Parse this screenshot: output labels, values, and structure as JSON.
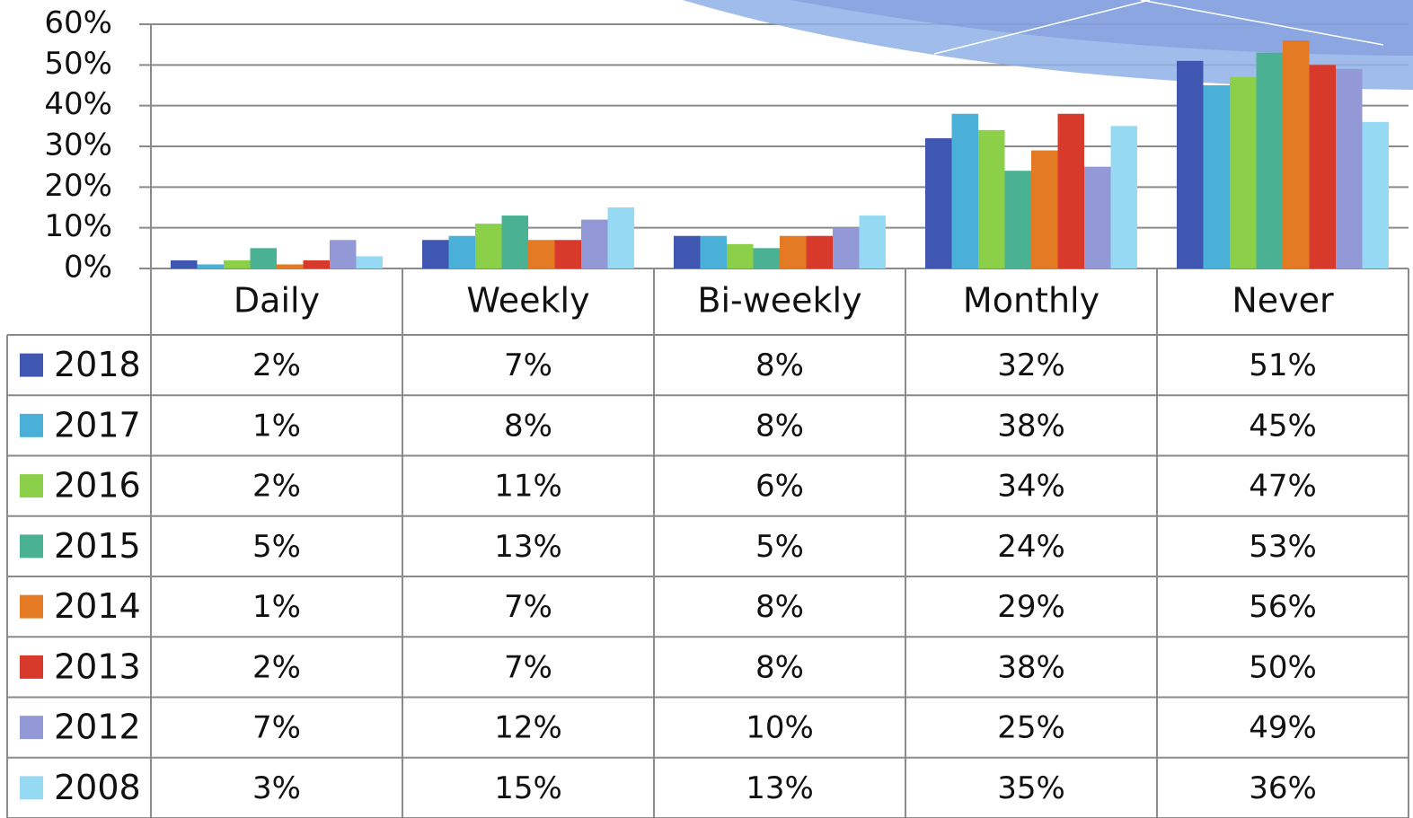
{
  "chart_data": {
    "type": "bar",
    "categories": [
      "Daily",
      "Weekly",
      "Bi-weekly",
      "Monthly",
      "Never"
    ],
    "ylim": [
      0,
      60
    ],
    "yticks": [
      {
        "value": 0,
        "label": "0%"
      },
      {
        "value": 10,
        "label": "10%"
      },
      {
        "value": 20,
        "label": "20%"
      },
      {
        "value": 30,
        "label": "30%"
      },
      {
        "value": 40,
        "label": "40%"
      },
      {
        "value": 50,
        "label": "50%"
      },
      {
        "value": 60,
        "label": "60%"
      }
    ],
    "grid": true,
    "series": [
      {
        "name": "2018",
        "color": "#3f57b0",
        "values": [
          2,
          7,
          8,
          32,
          51
        ],
        "value_labels": [
          "2%",
          "7%",
          "8%",
          "32%",
          "51%"
        ]
      },
      {
        "name": "2017",
        "color": "#4ab0d8",
        "values": [
          1,
          8,
          8,
          38,
          45
        ],
        "value_labels": [
          "1%",
          "8%",
          "8%",
          "38%",
          "45%"
        ]
      },
      {
        "name": "2016",
        "color": "#8ccf48",
        "values": [
          2,
          11,
          6,
          34,
          47
        ],
        "value_labels": [
          "2%",
          "11%",
          "6%",
          "34%",
          "47%"
        ]
      },
      {
        "name": "2015",
        "color": "#4bb193",
        "values": [
          5,
          13,
          5,
          24,
          53
        ],
        "value_labels": [
          "5%",
          "13%",
          "5%",
          "24%",
          "53%"
        ]
      },
      {
        "name": "2014",
        "color": "#e47a24",
        "values": [
          1,
          7,
          8,
          29,
          56
        ],
        "value_labels": [
          "1%",
          "7%",
          "8%",
          "29%",
          "56%"
        ]
      },
      {
        "name": "2013",
        "color": "#d7392a",
        "values": [
          2,
          7,
          8,
          38,
          50
        ],
        "value_labels": [
          "2%",
          "7%",
          "8%",
          "38%",
          "50%"
        ]
      },
      {
        "name": "2012",
        "color": "#9399d6",
        "values": [
          7,
          12,
          10,
          25,
          49
        ],
        "value_labels": [
          "7%",
          "12%",
          "10%",
          "25%",
          "49%"
        ]
      },
      {
        "name": "2008",
        "color": "#96d9f3",
        "values": [
          3,
          15,
          13,
          35,
          36
        ],
        "value_labels": [
          "3%",
          "15%",
          "13%",
          "35%",
          "36%"
        ]
      }
    ]
  }
}
